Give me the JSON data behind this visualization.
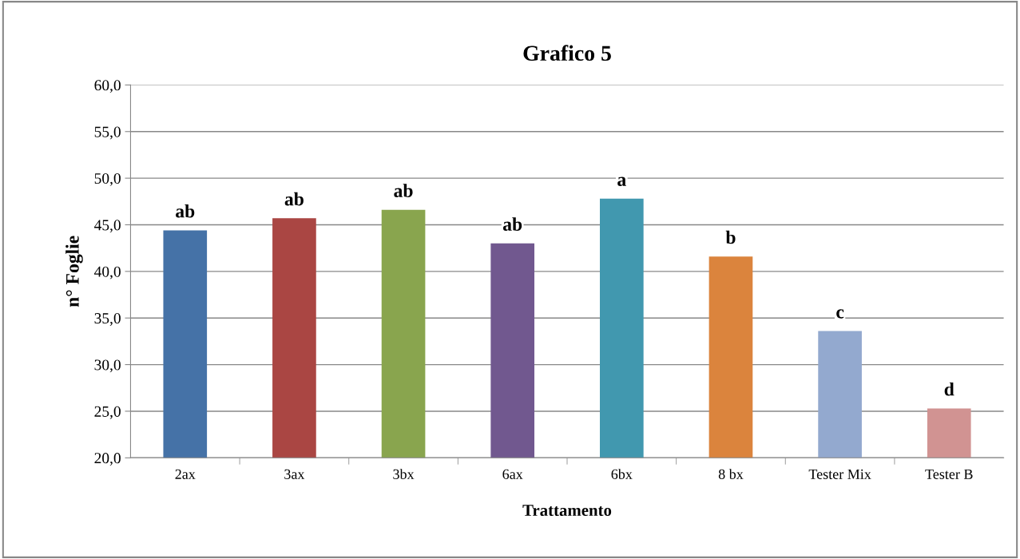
{
  "chart_data": {
    "type": "bar",
    "title": "Grafico 5",
    "xlabel": "Trattamento",
    "ylabel": "n° Foglie",
    "categories": [
      "2ax",
      "3ax",
      "3bx",
      "6ax",
      "6bx",
      "8 bx",
      "Tester Mix",
      "Tester B"
    ],
    "values": [
      44.4,
      45.7,
      46.6,
      43.0,
      47.8,
      41.6,
      33.6,
      25.3
    ],
    "colors": [
      "#4572a7",
      "#aa4643",
      "#89a54e",
      "#71588f",
      "#4198af",
      "#db843d",
      "#93a9cf",
      "#d19392"
    ],
    "ylim": [
      20,
      60
    ],
    "yticks": [
      {
        "value": 20,
        "label": "20,0"
      },
      {
        "value": 25,
        "label": "25,0"
      },
      {
        "value": 30,
        "label": "30,0"
      },
      {
        "value": 35,
        "label": "35,0"
      },
      {
        "value": 40,
        "label": "40,0"
      },
      {
        "value": 45,
        "label": "45,0"
      },
      {
        "value": 50,
        "label": "50,0"
      },
      {
        "value": 55,
        "label": "55,0"
      },
      {
        "value": 60,
        "label": "60,0"
      }
    ],
    "grid": "y",
    "annotations": [
      {
        "text": "ab",
        "x": "2ax",
        "y": 44.4
      },
      {
        "text": "ab",
        "x": "3ax",
        "y": 45.7
      },
      {
        "text": "ab",
        "x": "3bx",
        "y": 46.6
      },
      {
        "text": "ab",
        "x": "6ax",
        "y": 43.0
      },
      {
        "text": "a",
        "x": "6bx",
        "y": 47.8
      },
      {
        "text": "b",
        "x": "8 bx",
        "y": 41.6
      },
      {
        "text": "c",
        "x": "Tester Mix",
        "y": 33.6
      },
      {
        "text": "d",
        "x": "Tester B",
        "y": 25.3
      }
    ]
  }
}
